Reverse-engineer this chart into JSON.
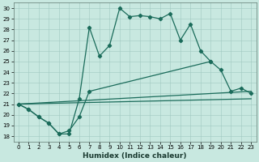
{
  "bg_color": "#c8e8e0",
  "grid_color": "#a0c8c0",
  "line_color": "#1a6b5a",
  "xlabel": "Humidex (Indice chaleur)",
  "xlim": [
    -0.5,
    23.5
  ],
  "ylim": [
    17.5,
    30.5
  ],
  "xticks": [
    0,
    1,
    2,
    3,
    4,
    5,
    6,
    7,
    8,
    9,
    10,
    11,
    12,
    13,
    14,
    15,
    16,
    17,
    18,
    19,
    20,
    21,
    22,
    23
  ],
  "yticks": [
    18,
    19,
    20,
    21,
    22,
    23,
    24,
    25,
    26,
    27,
    28,
    29,
    30
  ],
  "curve1_x": [
    0,
    1,
    2,
    3,
    4,
    5,
    6,
    7,
    8,
    9,
    10,
    11,
    12,
    13,
    14,
    15,
    16,
    17,
    18,
    19,
    20,
    21,
    22,
    23
  ],
  "curve1_y": [
    21.0,
    20.5,
    19.8,
    19.2,
    18.2,
    18.2,
    21.5,
    28.2,
    25.5,
    26.5,
    30.0,
    29.2,
    29.3,
    29.2,
    29.0,
    29.5,
    27.0,
    28.5,
    26.0,
    25.0,
    null,
    null,
    null,
    null
  ],
  "curve2_x": [
    0,
    1,
    2,
    3,
    4,
    5,
    6,
    7,
    19,
    20,
    21,
    22,
    23
  ],
  "curve2_y": [
    21.0,
    20.5,
    19.8,
    19.2,
    18.2,
    18.5,
    19.8,
    22.2,
    25.0,
    24.2,
    22.2,
    22.5,
    22.0
  ],
  "line3_x": [
    0,
    23
  ],
  "line3_y": [
    21.0,
    22.2
  ],
  "line4_x": [
    0,
    23
  ],
  "line4_y": [
    21.0,
    21.5
  ],
  "tick_fontsize": 5,
  "label_fontsize": 6.5
}
